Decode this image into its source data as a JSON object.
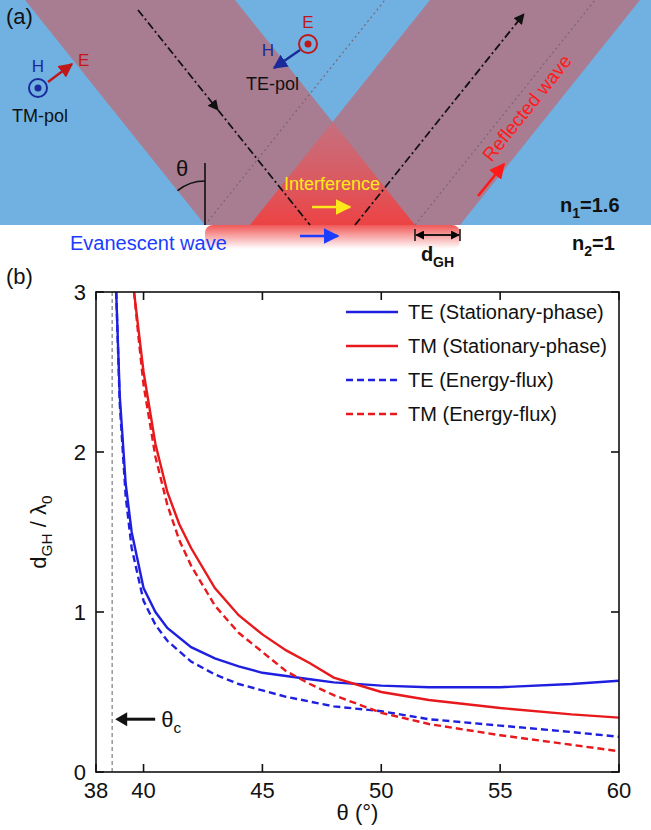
{
  "diagram": {
    "panel_label": "(a)",
    "tm_pol": "TM-pol",
    "te_pol": "TE-pol",
    "h": "H",
    "e": "E",
    "theta": "θ",
    "interference": "Interference",
    "evanescent": "Evanescent wave",
    "reflected": "Reflected wave",
    "n1": [
      {
        "t": "n"
      },
      {
        "t": "1",
        "sub": true
      },
      {
        "t": "=1.6"
      }
    ],
    "n2": [
      {
        "t": "n"
      },
      {
        "t": "2",
        "sub": true
      },
      {
        "t": "=1"
      }
    ],
    "dgh": [
      {
        "t": "d"
      },
      {
        "t": "GH",
        "sub": true
      }
    ]
  },
  "chart_data": {
    "type": "line",
    "panel_label": "(b)",
    "x_label": "θ (°)",
    "y_label": [
      {
        "t": "d"
      },
      {
        "t": "GH",
        "sub": true
      },
      {
        "t": " / λ"
      },
      {
        "t": "0",
        "sub": true
      }
    ],
    "xlim": [
      38,
      60
    ],
    "xticks": [
      38,
      40,
      45,
      50,
      55,
      60
    ],
    "ylim": [
      0,
      3
    ],
    "yticks": [
      0,
      1,
      2,
      3
    ],
    "legend": "upper right",
    "annotations": [
      {
        "parts": [
          {
            "t": "θ"
          },
          {
            "t": "c",
            "sub": true
          }
        ],
        "x": 38.68,
        "y": 0.33
      }
    ],
    "series": [
      {
        "name": "TE (Stationary-phase)",
        "color": "#1f1fe0",
        "line_style": "solid",
        "x": [
          38.85,
          39,
          39.25,
          39.5,
          40,
          40.5,
          41,
          42,
          43,
          44,
          45,
          46,
          47,
          48,
          50,
          52,
          55,
          58,
          60
        ],
        "values": [
          3,
          2.35,
          1.8,
          1.5,
          1.15,
          1.0,
          0.9,
          0.78,
          0.71,
          0.66,
          0.62,
          0.6,
          0.58,
          0.56,
          0.54,
          0.53,
          0.53,
          0.55,
          0.57
        ]
      },
      {
        "name": "TM (Stationary-phase)",
        "color": "#e8191c",
        "line_style": "solid",
        "x": [
          39.6,
          39.8,
          40,
          40.5,
          41,
          41.5,
          42,
          43,
          44,
          45,
          46,
          47,
          48,
          50,
          52,
          55,
          58,
          60
        ],
        "values": [
          3,
          2.75,
          2.5,
          2.05,
          1.75,
          1.55,
          1.4,
          1.15,
          0.98,
          0.86,
          0.76,
          0.68,
          0.59,
          0.5,
          0.45,
          0.4,
          0.36,
          0.34
        ]
      },
      {
        "name": "TE (Energy-flux)",
        "color": "#1f1fe0",
        "line_style": "dashed",
        "x": [
          38.85,
          39,
          39.25,
          39.5,
          40,
          40.5,
          41,
          42,
          43,
          44,
          45,
          46,
          47,
          48,
          50,
          52,
          55,
          58,
          60
        ],
        "values": [
          3,
          2.3,
          1.72,
          1.4,
          1.07,
          0.92,
          0.82,
          0.69,
          0.61,
          0.55,
          0.51,
          0.47,
          0.44,
          0.41,
          0.38,
          0.33,
          0.29,
          0.25,
          0.22
        ]
      },
      {
        "name": "TM (Energy-flux)",
        "color": "#e8191c",
        "line_style": "dashed",
        "x": [
          39.6,
          39.8,
          40,
          40.5,
          41,
          41.5,
          42,
          43,
          44,
          45,
          46,
          47,
          48,
          50,
          52,
          55,
          58,
          60
        ],
        "values": [
          3,
          2.7,
          2.42,
          1.97,
          1.67,
          1.45,
          1.29,
          1.04,
          0.87,
          0.75,
          0.63,
          0.55,
          0.48,
          0.37,
          0.3,
          0.23,
          0.17,
          0.13
        ]
      }
    ]
  }
}
